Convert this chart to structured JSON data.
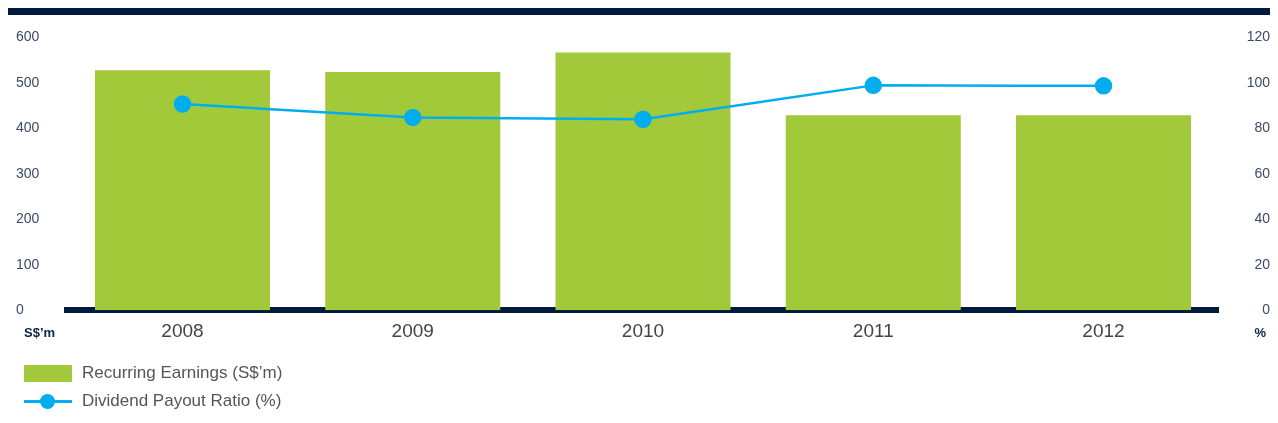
{
  "chart_data": {
    "type": "bar",
    "categories": [
      "2008",
      "2009",
      "2010",
      "2011",
      "2012"
    ],
    "series": [
      {
        "name": "Recurring Earnings (S$’m)",
        "color": "#a2c93a",
        "values": [
          528,
          524,
          567,
          429,
          429
        ]
      },
      {
        "name": "Dividend Payout Ratio (%)",
        "type": "line",
        "axis": "y2",
        "color": "#00aeef",
        "values": [
          90.7,
          84.8,
          84.0,
          98.9,
          98.7
        ]
      }
    ],
    "ylabel": "S$’m",
    "y2label": "%",
    "ylim": [
      0,
      600
    ],
    "yticks": [
      0,
      100,
      200,
      300,
      400,
      500,
      600
    ],
    "y2lim": [
      0,
      120
    ],
    "y2ticks": [
      0,
      20,
      40,
      60,
      80,
      100,
      120
    ],
    "marker": "circle",
    "legend": "bottom left"
  }
}
